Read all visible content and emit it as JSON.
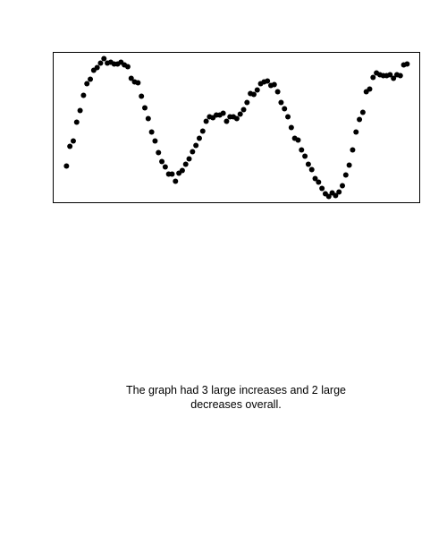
{
  "chart_data": {
    "type": "scatter",
    "caption": "The graph had 3 large increases and 2 large decreases overall.",
    "color": "#000000",
    "x": [
      0,
      1,
      2,
      3,
      4,
      5,
      6,
      7,
      8,
      9,
      10,
      11,
      12,
      13,
      14,
      15,
      16,
      17,
      18,
      19,
      20,
      21,
      22,
      23,
      24,
      25,
      26,
      27,
      28,
      29,
      30,
      31,
      32,
      33,
      34,
      35,
      36,
      37,
      38,
      39,
      40,
      41,
      42,
      43,
      44,
      45,
      46,
      47,
      48,
      49,
      50,
      51,
      52,
      53,
      54,
      55,
      56,
      57,
      58,
      59,
      60,
      61,
      62,
      63,
      64,
      65,
      66,
      67,
      68,
      69,
      70,
      71,
      72,
      73,
      74,
      75,
      76,
      77,
      78,
      79,
      80,
      81,
      82,
      83,
      84,
      85,
      86,
      87,
      88,
      89,
      90,
      91,
      92,
      93,
      94,
      95,
      96,
      97,
      98,
      99,
      100
    ],
    "values": [
      41,
      63,
      69,
      90,
      103,
      120,
      133,
      138,
      148,
      151,
      156,
      161,
      156,
      157,
      155,
      155,
      157,
      154,
      152,
      139,
      135,
      134,
      119,
      106,
      94,
      79,
      69,
      56,
      46,
      40,
      32,
      32,
      24,
      33,
      36,
      43,
      49,
      57,
      64,
      72,
      80,
      91,
      96,
      95,
      98,
      98,
      100,
      91,
      96,
      96,
      94,
      99,
      104,
      112,
      122,
      121,
      126,
      133,
      135,
      136,
      131,
      132,
      124,
      112,
      105,
      96,
      84,
      72,
      70,
      59,
      52,
      43,
      37,
      27,
      23,
      16,
      10,
      7,
      11,
      8,
      12,
      19,
      31,
      42,
      59,
      79,
      93,
      101,
      124,
      127,
      140,
      145,
      143,
      142,
      142,
      143,
      139,
      143,
      142,
      154,
      155
    ],
    "xlim": [
      -3.9,
      103.7
    ],
    "ylim": [
      0,
      168
    ]
  }
}
